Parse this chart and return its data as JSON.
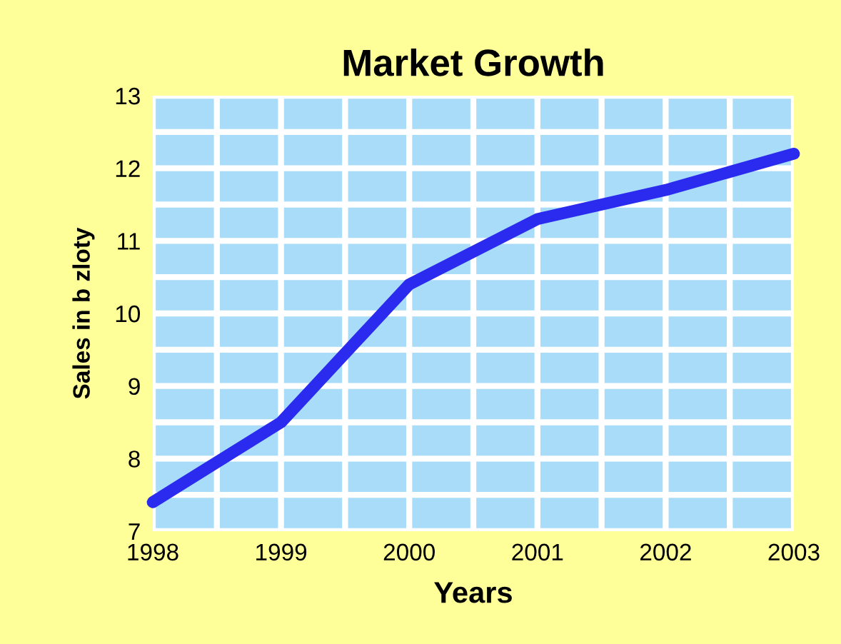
{
  "chart_data": {
    "type": "line",
    "title": "Market Growth",
    "xlabel": "Years",
    "ylabel": "Sales in b zloty",
    "x": [
      1998,
      1999,
      2000,
      2001,
      2002,
      2003
    ],
    "series": [
      {
        "color": "#2b2bf0",
        "values": [
          7.4,
          8.5,
          10.4,
          11.3,
          11.7,
          12.2
        ]
      }
    ],
    "xlim": [
      1998,
      2003
    ],
    "ylim": [
      7,
      13
    ],
    "xticks": [
      1998,
      {
        "value": 1998.5,
        "label": null
      },
      1999,
      {
        "value": 1999.5,
        "label": null
      },
      2000,
      {
        "value": 2000.5,
        "label": null
      },
      2001,
      {
        "value": 2001.5,
        "label": null
      },
      2002,
      {
        "value": 2002.5,
        "label": null
      },
      2003
    ],
    "yticks": [
      7,
      {
        "value": 7.5,
        "label": null
      },
      8,
      {
        "value": 8.5,
        "label": null
      },
      9,
      {
        "value": 9.5,
        "label": null
      },
      10,
      {
        "value": 10.5,
        "label": null
      },
      11,
      {
        "value": 11.5,
        "label": null
      },
      12,
      {
        "value": 12.5,
        "label": null
      },
      13
    ],
    "grid": true,
    "legend": false,
    "marker": "none",
    "line_style": "solid"
  }
}
